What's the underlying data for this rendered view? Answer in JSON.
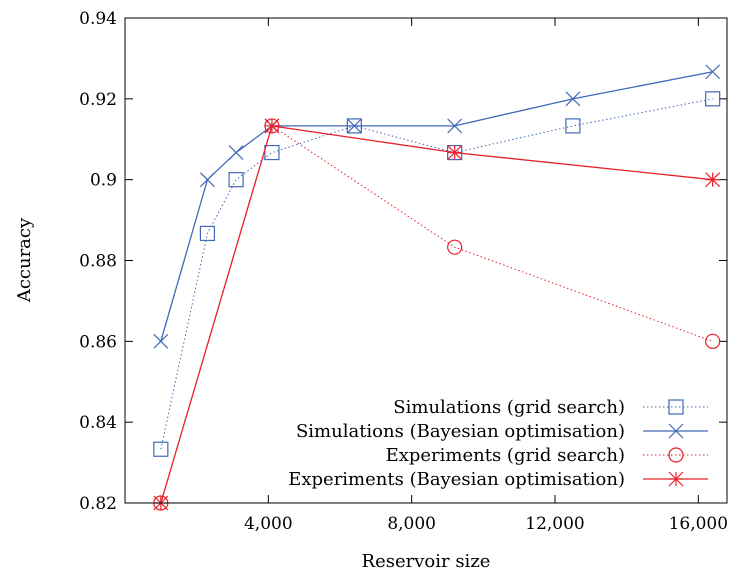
{
  "chart_data": {
    "type": "line",
    "xlabel": "Reservoir size",
    "ylabel": "Accuracy",
    "xlim": [
      0,
      16800
    ],
    "ylim": [
      0.82,
      0.94
    ],
    "xticks": [
      4000,
      8000,
      12000,
      16000
    ],
    "xtick_labels": [
      "4,000",
      "8,000",
      "12,000",
      "16,000"
    ],
    "yticks": [
      0.82,
      0.84,
      0.86,
      0.88,
      0.9,
      0.92,
      0.94
    ],
    "ytick_labels": [
      "0.82",
      "0.84",
      "0.86",
      "0.88",
      "0.9",
      "0.92",
      "0.94"
    ],
    "legend_position": "bottom-right",
    "series": [
      {
        "name": "Simulations (grid search)",
        "color": "#4169b8",
        "line": "dotted",
        "marker": "square",
        "x": [
          1000,
          2300,
          3100,
          4100,
          6400,
          9200,
          12500,
          16400
        ],
        "y": [
          0.8333,
          0.8867,
          0.9,
          0.9067,
          0.9133,
          0.9067,
          0.9133,
          0.92
        ]
      },
      {
        "name": "Simulations (Bayesian optimisation)",
        "color": "#4169b8",
        "line": "solid",
        "marker": "x",
        "x": [
          1000,
          2300,
          3100,
          4100,
          6400,
          9200,
          12500,
          16400
        ],
        "y": [
          0.86,
          0.9,
          0.9067,
          0.9133,
          0.9133,
          0.9133,
          0.92,
          0.9267
        ]
      },
      {
        "name": "Experiments (grid search)",
        "color": "#e8202a",
        "line": "dotted",
        "marker": "circle",
        "x": [
          1000,
          4100,
          9200,
          16400
        ],
        "y": [
          0.82,
          0.9133,
          0.8833,
          0.86
        ]
      },
      {
        "name": "Experiments (Bayesian optimisation)",
        "color": "#e8202a",
        "line": "solid",
        "marker": "star",
        "x": [
          1000,
          4100,
          9200,
          16400
        ],
        "y": [
          0.82,
          0.9133,
          0.9067,
          0.9
        ]
      }
    ]
  }
}
